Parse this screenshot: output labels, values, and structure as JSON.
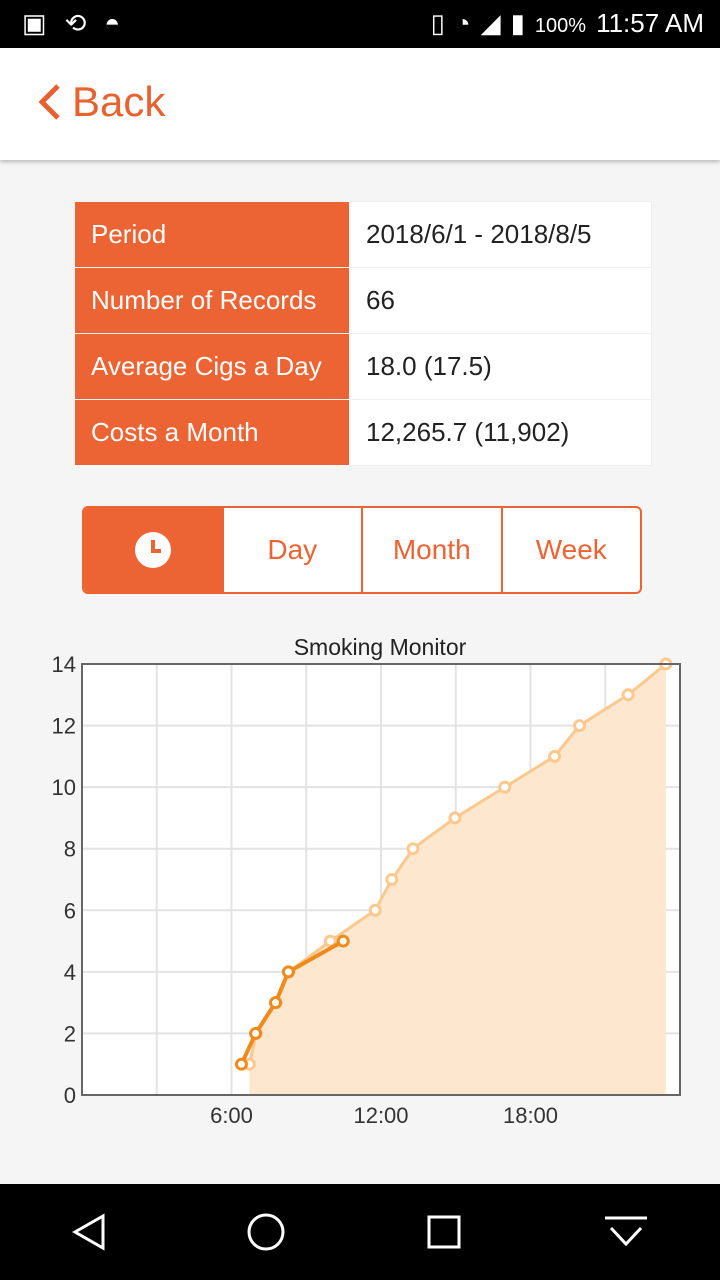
{
  "status_bar": {
    "battery": "100%",
    "time": "11:57 AM"
  },
  "header": {
    "back_label": "Back"
  },
  "summary": [
    {
      "label": "Period",
      "value": "2018/6/1 - 2018/8/5"
    },
    {
      "label": "Number of Records",
      "value": "66"
    },
    {
      "label": "Average Cigs a Day",
      "value": "18.0 (17.5)"
    },
    {
      "label": "Costs a Month",
      "value": "12,265.7 (11,902)"
    }
  ],
  "segments": {
    "icon": "clock-icon",
    "day": "Day",
    "month": "Month",
    "week": "Week",
    "active": "clock"
  },
  "colors": {
    "accent": "#ec6334",
    "series_dark": "#f08a1c",
    "series_light": "#fcc88e",
    "fill": "#fde8cf"
  },
  "chart_data": {
    "type": "line",
    "title": "Smoking Monitor",
    "xlim": [
      "0:00",
      "24:00"
    ],
    "ylim": [
      0,
      14
    ],
    "x_ticks": [
      "6:00",
      "12:00",
      "18:00"
    ],
    "y_ticks": [
      0,
      2,
      4,
      6,
      8,
      10,
      12,
      14
    ],
    "grid": true,
    "series": [
      {
        "style": "light-area",
        "points": [
          [
            "6:43",
            1
          ],
          [
            "7:00",
            2
          ],
          [
            "7:48",
            3
          ],
          [
            "8:18",
            4
          ],
          [
            "9:58",
            5
          ],
          [
            "11:46",
            6
          ],
          [
            "12:26",
            7
          ],
          [
            "13:17",
            8
          ],
          [
            "14:58",
            9
          ],
          [
            "16:58",
            10
          ],
          [
            "18:58",
            11
          ],
          [
            "19:58",
            12
          ],
          [
            "21:55",
            13
          ],
          [
            "23:26",
            14
          ]
        ]
      },
      {
        "style": "dark-line",
        "points": [
          [
            "6:24",
            1
          ],
          [
            "6:58",
            2
          ],
          [
            "7:46",
            3
          ],
          [
            "8:17",
            4
          ],
          [
            "10:29",
            5
          ]
        ]
      }
    ]
  }
}
